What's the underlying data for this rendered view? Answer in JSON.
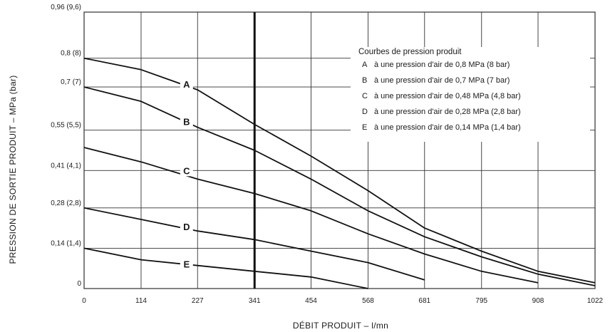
{
  "chart_data": {
    "type": "line",
    "title": "",
    "xlabel": "DÉBIT PRODUIT – l/mn",
    "ylabel": "PRESSION DE SORTIE PRODUIT – MPa (bar)",
    "xlim": [
      0,
      1022
    ],
    "ylim": [
      0,
      0.96
    ],
    "x_ticks": [
      0,
      114,
      227,
      341,
      454,
      568,
      681,
      795,
      908,
      1022
    ],
    "x_tick_labels": [
      "0",
      "114",
      "227",
      "341",
      "454",
      "568",
      "681",
      "795",
      "908",
      "1022"
    ],
    "y_ticks": [
      0,
      0.14,
      0.28,
      0.41,
      0.55,
      0.7,
      0.8,
      0.96
    ],
    "y_tick_labels": [
      "0",
      "0,14 (1,4)",
      "0,28 (2,8)",
      "0,41 (4,1)",
      "0,55 (5,5)",
      "0,7 (7)",
      "0,8 (8)",
      "0,96 (9,6)"
    ],
    "grid": true,
    "reference_line_x": 341,
    "legend": {
      "title": "Courbes de pression produit",
      "position": "top-right",
      "entries": [
        {
          "key": "A",
          "text": "à une pression d'air de 0,8 MPa (8 bar)"
        },
        {
          "key": "B",
          "text": "à une pression d'air de 0,7 MPa (7 bar)"
        },
        {
          "key": "C",
          "text": "à une pression d'air de 0,48 MPa (4,8 bar)"
        },
        {
          "key": "D",
          "text": "à une pression d'air de 0,28 MPa (2,8 bar)"
        },
        {
          "key": "E",
          "text": "à une pression d'air de 0,14 MPa (1,4 bar)"
        }
      ]
    },
    "series": [
      {
        "name": "A",
        "label_at": [
          205,
          0.705
        ],
        "points": [
          [
            0,
            0.8
          ],
          [
            114,
            0.76
          ],
          [
            227,
            0.69
          ],
          [
            341,
            0.57
          ],
          [
            454,
            0.46
          ],
          [
            568,
            0.34
          ],
          [
            681,
            0.21
          ],
          [
            795,
            0.13
          ],
          [
            908,
            0.06
          ],
          [
            1022,
            0.02
          ]
        ]
      },
      {
        "name": "B",
        "label_at": [
          205,
          0.575
        ],
        "points": [
          [
            0,
            0.7
          ],
          [
            114,
            0.65
          ],
          [
            227,
            0.56
          ],
          [
            341,
            0.48
          ],
          [
            454,
            0.38
          ],
          [
            568,
            0.27
          ],
          [
            681,
            0.18
          ],
          [
            795,
            0.11
          ],
          [
            908,
            0.05
          ],
          [
            1022,
            0.01
          ]
        ]
      },
      {
        "name": "C",
        "label_at": [
          205,
          0.405
        ],
        "points": [
          [
            0,
            0.49
          ],
          [
            114,
            0.44
          ],
          [
            227,
            0.38
          ],
          [
            341,
            0.33
          ],
          [
            454,
            0.27
          ],
          [
            568,
            0.19
          ],
          [
            681,
            0.12
          ],
          [
            795,
            0.06
          ],
          [
            908,
            0.02
          ]
        ]
      },
      {
        "name": "D",
        "label_at": [
          205,
          0.21
        ],
        "points": [
          [
            0,
            0.28
          ],
          [
            114,
            0.24
          ],
          [
            227,
            0.2
          ],
          [
            341,
            0.17
          ],
          [
            454,
            0.13
          ],
          [
            568,
            0.09
          ],
          [
            681,
            0.03
          ]
        ]
      },
      {
        "name": "E",
        "label_at": [
          205,
          0.08
        ],
        "points": [
          [
            0,
            0.14
          ],
          [
            114,
            0.1
          ],
          [
            227,
            0.08
          ],
          [
            341,
            0.06
          ],
          [
            454,
            0.04
          ],
          [
            568,
            0.0
          ]
        ]
      }
    ]
  }
}
